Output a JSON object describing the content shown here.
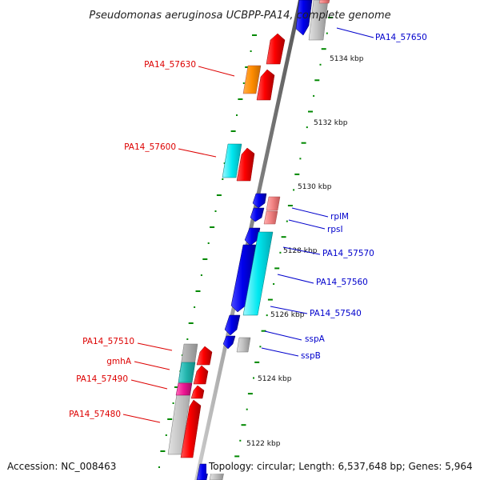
{
  "title": "Pseudomonas aeruginosa UCBPP-PA14, complete genome",
  "accession": "Accession: NC_008463",
  "topology": "Topology: circular; Length: 6,537,648 bp; Genes: 5,964",
  "colors": {
    "forward": "#ff0000",
    "reverse": "#0000ee",
    "rna": "#00e5ee",
    "rrna": "#f08080",
    "magenta": "#ee1493",
    "orange": "#ff8c00",
    "neutral": "#bbbbbb",
    "teal": "#20b2aa",
    "tick": "#008800",
    "label_left": "#dd0000",
    "label_right": "#0000cc"
  },
  "scale_labels": [
    "5134 kbp",
    "5132 kbp",
    "5130 kbp",
    "5128 kbp",
    "5126 kbp",
    "5124 kbp",
    "5122 kbp"
  ],
  "left_labels": [
    "PA14_57630",
    "PA14_57600",
    "PA14_57510",
    "gmhA",
    "PA14_57490",
    "PA14_57480"
  ],
  "right_labels": [
    "PA14_57650",
    "rplM",
    "rpsI",
    "PA14_57570",
    "PA14_57560",
    "PA14_57540",
    "sspA",
    "sspB"
  ]
}
